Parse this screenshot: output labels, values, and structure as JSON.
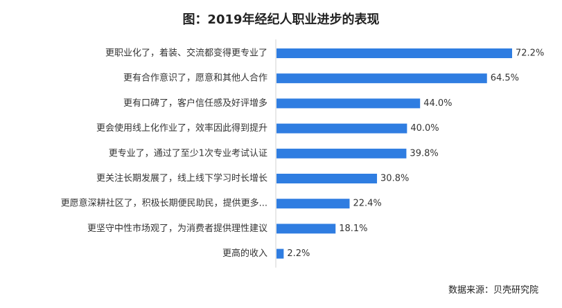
{
  "chart_data": {
    "type": "bar",
    "orientation": "horizontal",
    "title": "图：2019年经纪人职业进步的表现",
    "categories": [
      "更职业化了，着装、交流都变得更专业了",
      "更有合作意识了，愿意和其他人合作",
      "更有口碑了，客户信任感及好评增多",
      "更会使用线上化作业了，效率因此得到提升",
      "更专业了，通过了至少1次专业考试认证",
      "更关注长期发展了，线上线下学习时长增长",
      "更愿意深耕社区了，积极长期便民助民，提供更多...",
      "更坚守中性市场观了，为消费者提供理性建议",
      "更高的收入"
    ],
    "values": [
      72.2,
      64.5,
      44.0,
      40.0,
      39.8,
      30.8,
      22.4,
      18.1,
      2.2
    ],
    "value_labels": [
      "72.2%",
      "64.5%",
      "44.0%",
      "40.0%",
      "39.8%",
      "30.8%",
      "22.4%",
      "18.1%",
      "2.2%"
    ],
    "unit": "%",
    "bar_color": "#2f7de1",
    "legend": "none",
    "grid": false,
    "xlim": [
      0,
      72.2
    ]
  },
  "source_note": "数据来源：贝壳研究院"
}
